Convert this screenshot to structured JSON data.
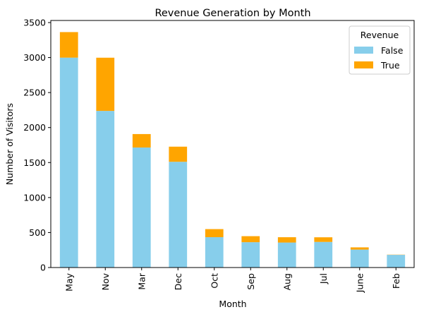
{
  "chart_data": {
    "type": "bar",
    "stacked": true,
    "title": "Revenue Generation by Month",
    "xlabel": "Month",
    "ylabel": "Number of Visitors",
    "categories": [
      "May",
      "Nov",
      "Mar",
      "Dec",
      "Oct",
      "Sep",
      "Aug",
      "Jul",
      "June",
      "Feb"
    ],
    "series": [
      {
        "name": "False",
        "color": "#87ceeb",
        "values": [
          2999,
          2238,
          1715,
          1511,
          434,
          362,
          357,
          366,
          256,
          181
        ]
      },
      {
        "name": "True",
        "color": "#ffa500",
        "values": [
          365,
          760,
          192,
          216,
          115,
          86,
          76,
          66,
          32,
          3
        ]
      }
    ],
    "ylim": [
      0,
      3530
    ],
    "yticks": [
      0,
      500,
      1000,
      1500,
      2000,
      2500,
      3000,
      3500
    ],
    "grid": false,
    "legend": {
      "title": "Revenue",
      "placement": "top-right"
    }
  }
}
